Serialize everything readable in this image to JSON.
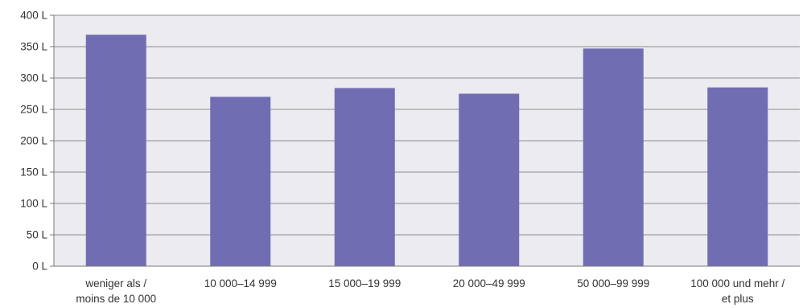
{
  "chart_data": {
    "type": "bar",
    "categories": [
      [
        "weniger als /",
        "moins de 10 000"
      ],
      [
        "10 000–14 999"
      ],
      [
        "15 000–19 999"
      ],
      [
        "20 000–49 999"
      ],
      [
        "50 000–99 999"
      ],
      [
        "100 000 und mehr /",
        "et plus"
      ]
    ],
    "values": [
      369,
      270,
      284,
      275,
      347,
      285
    ],
    "ylim": [
      0,
      400
    ],
    "yticks": [
      0,
      50,
      100,
      150,
      200,
      250,
      300,
      350,
      400
    ],
    "ytick_unit": " L",
    "grid": true,
    "title": "",
    "xlabel": "",
    "ylabel": "",
    "colors": {
      "bar": "#716db3",
      "plot_background": "#ebebf0",
      "grid": "#8c8c8c",
      "axis": "#7a7a7a"
    }
  }
}
